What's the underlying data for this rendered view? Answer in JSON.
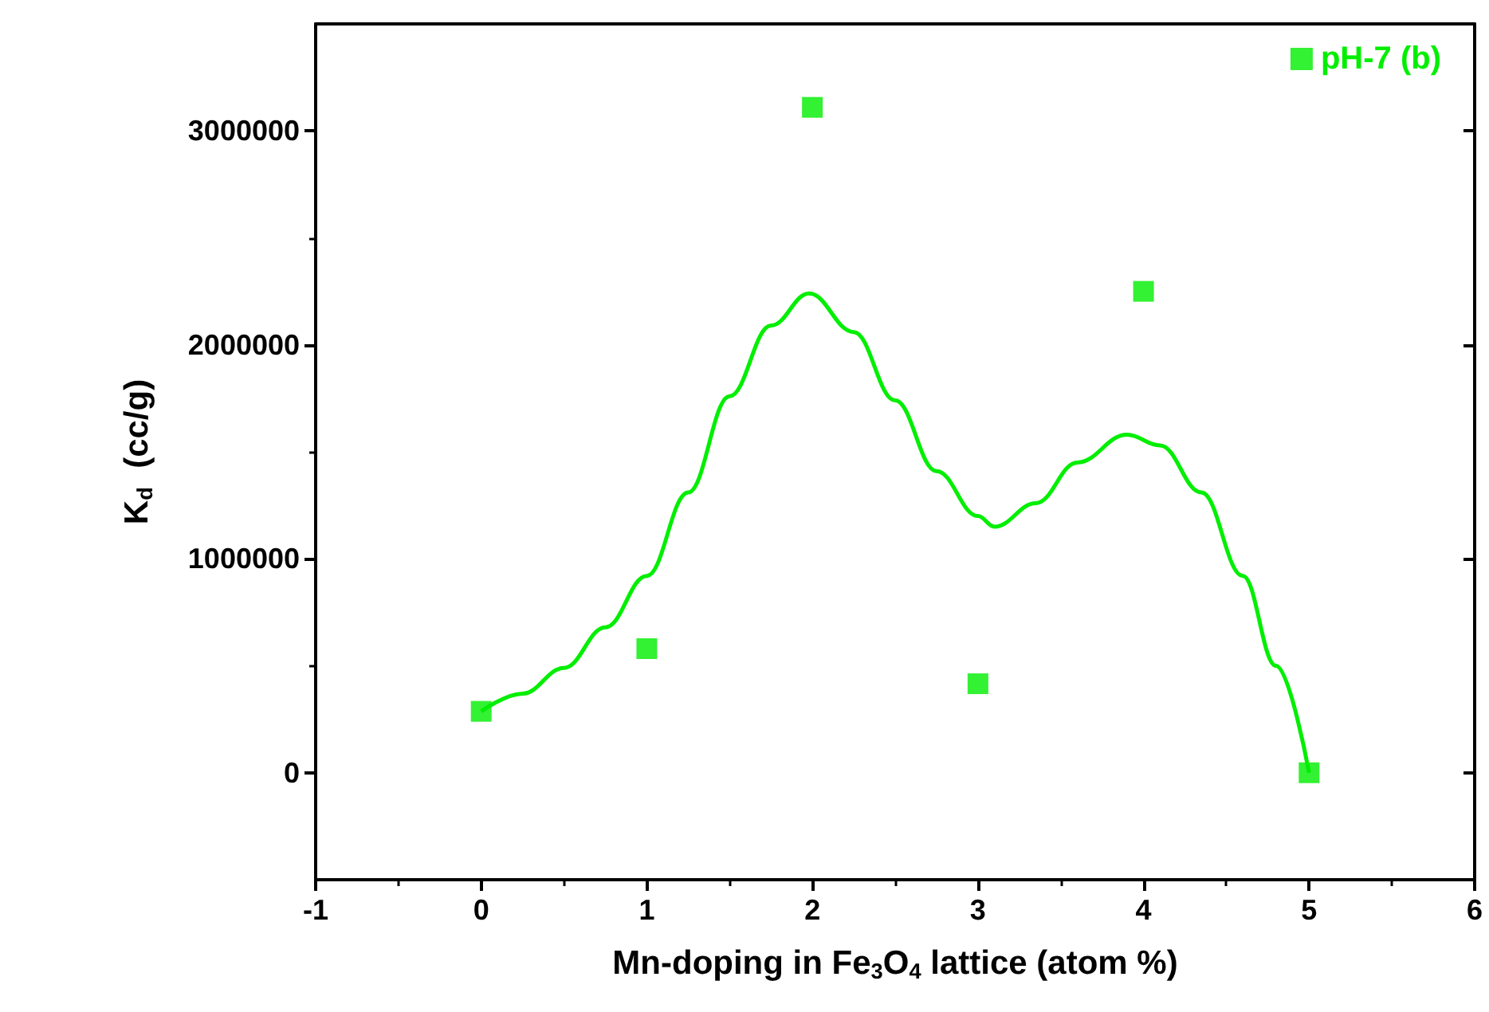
{
  "chart_data": {
    "type": "scatter",
    "xlabel": "Mn-doping in Fe$_{3}$O$_{4}$ lattice (atom %)",
    "ylabel": "K$_{d}$  (cc/g)",
    "x": [
      0,
      1,
      2,
      3,
      4,
      5
    ],
    "series": [
      {
        "name": "pH-7 (b)",
        "color": "#00ee00",
        "values": [
          287000,
          580000,
          3110000,
          416000,
          2250000,
          0
        ]
      },
      {
        "type": "line",
        "marker": "none",
        "color": "#00ee00",
        "x": [
          0,
          0.25,
          0.5,
          0.75,
          1,
          1.25,
          1.5,
          1.75,
          1.98,
          2.25,
          2.5,
          2.75,
          3.0,
          3.1,
          3.35,
          3.6,
          3.9,
          4.1,
          4.35,
          4.6,
          4.8,
          5
        ],
        "values": [
          287000,
          370000,
          490000,
          680000,
          920000,
          1310000,
          1760000,
          2090000,
          2240000,
          2060000,
          1740000,
          1410000,
          1200000,
          1150000,
          1260000,
          1450000,
          1580000,
          1530000,
          1310000,
          920000,
          500000,
          0
        ]
      }
    ],
    "xlim": [
      -1,
      6
    ],
    "xticks": [
      -1,
      0,
      1,
      2,
      3,
      4,
      5,
      6
    ],
    "ylim": [
      -500000,
      3500000
    ],
    "yticks": [
      0,
      1000000,
      2000000,
      3000000
    ],
    "marker": "square",
    "legend": "top right"
  }
}
